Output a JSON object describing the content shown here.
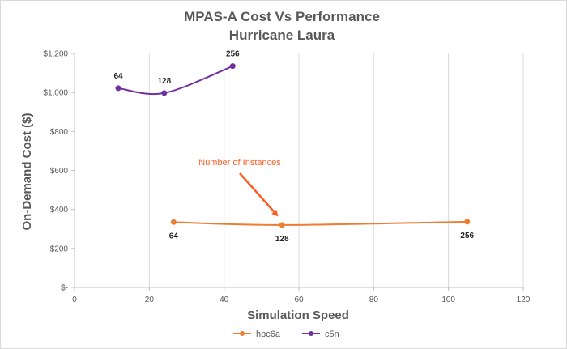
{
  "chart_data": {
    "type": "line",
    "title": [
      "MPAS-A  Cost Vs Performance",
      "Hurricane Laura"
    ],
    "xlabel": "Simulation Speed",
    "ylabel": "On-Demand Cost ($)",
    "xlim": [
      0,
      120
    ],
    "ylim": [
      0,
      1200
    ],
    "x_ticks": [
      0,
      20,
      40,
      60,
      80,
      100,
      120
    ],
    "y_ticks": [
      0,
      200,
      400,
      600,
      800,
      1000,
      1200
    ],
    "y_tick_labels": [
      "$-",
      "$200",
      "$400",
      "$600",
      "$800",
      "$1,000",
      "$1,200"
    ],
    "grid": "vertical",
    "legend_position": "bottom",
    "series": [
      {
        "name": "hpc6a",
        "color": "#ED7D31",
        "points": [
          {
            "x": 26.5,
            "y": 335,
            "label": "64"
          },
          {
            "x": 55.5,
            "y": 320,
            "label": "128"
          },
          {
            "x": 105,
            "y": 337,
            "label": "256"
          }
        ]
      },
      {
        "name": "c5n",
        "color": "#7030A0",
        "points": [
          {
            "x": 11.7,
            "y": 1022,
            "label": "64"
          },
          {
            "x": 24,
            "y": 997,
            "label": "128"
          },
          {
            "x": 42.3,
            "y": 1135,
            "label": "256"
          }
        ]
      }
    ],
    "annotation": {
      "text": "Number of Instances",
      "color": "#FF5B1F",
      "arrow_to_x": 55.5,
      "arrow_to_y": 320
    }
  }
}
